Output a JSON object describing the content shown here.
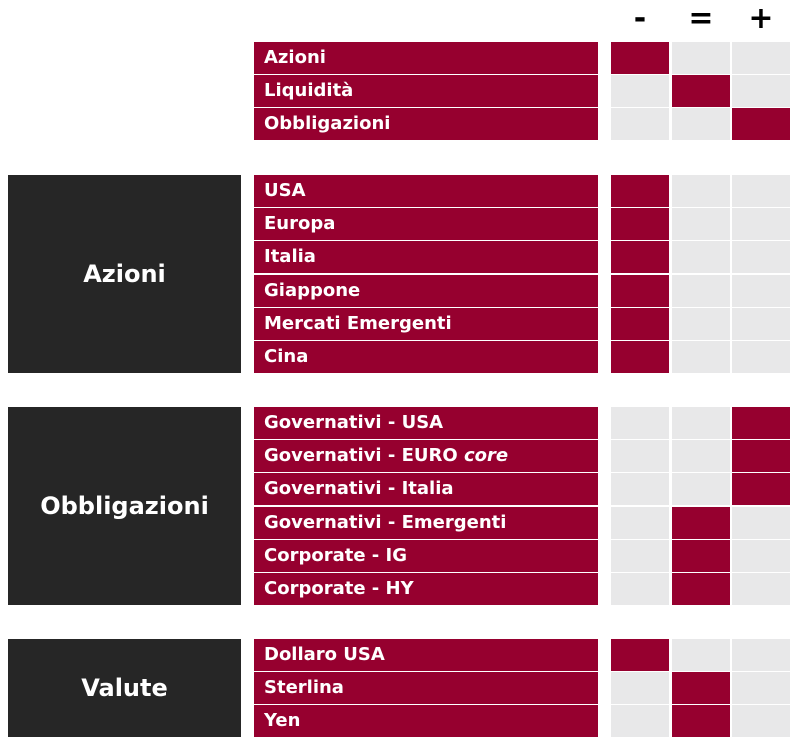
{
  "columns": [
    "-",
    "=",
    "+"
  ],
  "groups": [
    {
      "title": "",
      "rows": [
        {
          "label": "Azioni",
          "rating": "-"
        },
        {
          "label": "Liquidità",
          "rating": "="
        },
        {
          "label": "Obbligazioni",
          "rating": "+"
        }
      ]
    },
    {
      "title": "Azioni",
      "rows": [
        {
          "label": "USA",
          "rating": "-"
        },
        {
          "label": "Europa",
          "rating": "-"
        },
        {
          "label": "Italia",
          "rating": "-"
        },
        {
          "label": "Giappone",
          "rating": "-"
        },
        {
          "label": "Mercati Emergenti",
          "rating": "-"
        },
        {
          "label": "Cina",
          "rating": "-"
        }
      ]
    },
    {
      "title": "Obbligazioni",
      "rows": [
        {
          "label": "Governativi - USA",
          "rating": "+"
        },
        {
          "label": "Governativi - EURO",
          "label_italic": "core",
          "rating": "+"
        },
        {
          "label": "Governativi - Italia",
          "rating": "+"
        },
        {
          "label": "Governativi - Emergenti",
          "rating": "="
        },
        {
          "label": "Corporate - IG",
          "rating": "="
        },
        {
          "label": "Corporate - HY",
          "rating": "="
        }
      ]
    },
    {
      "title": "Valute",
      "rows": [
        {
          "label": "Dollaro USA",
          "rating": "-"
        },
        {
          "label": "Sterlina",
          "rating": "="
        },
        {
          "label": "Yen",
          "rating": "="
        }
      ]
    }
  ],
  "colors": {
    "accent": "#96002f",
    "group_box": "#262626",
    "empty_cell": "#e8e8e9"
  }
}
